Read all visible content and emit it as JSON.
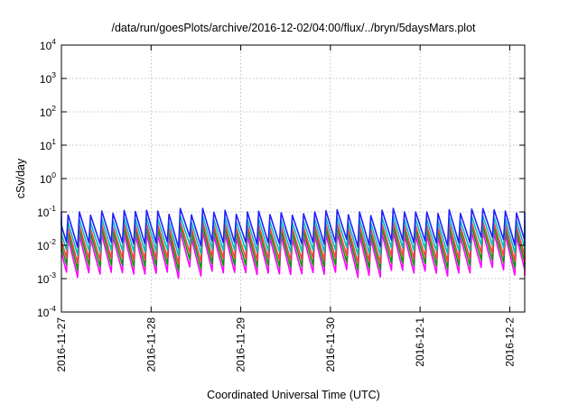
{
  "chart_data": {
    "type": "line",
    "title": "/data/run/goesPlots/archive/2016-12-02/04:00/flux/../bryn/5daysMars.plot",
    "xlabel": "Coordinated Universal Time (UTC)",
    "ylabel": "cSv/day",
    "xscale": "time",
    "yscale": "log",
    "xlim": [
      "2016-11-27T00:00",
      "2016-12-02T04:00"
    ],
    "ylim": [
      0.0001,
      10000
    ],
    "x_ticks": [
      "2016-11-27",
      "2016-11-28",
      "2016-11-29",
      "2016-11-30",
      "2016-12-1",
      "2016-12-2"
    ],
    "y_ticks": [
      {
        "base": "10",
        "exp": "-4"
      },
      {
        "base": "10",
        "exp": "-3"
      },
      {
        "base": "10",
        "exp": "-2"
      },
      {
        "base": "10",
        "exp": "-1"
      },
      {
        "base": "10",
        "exp": "0"
      },
      {
        "base": "10",
        "exp": "1"
      },
      {
        "base": "10",
        "exp": "2"
      },
      {
        "base": "10",
        "exp": "3"
      },
      {
        "base": "10",
        "exp": "4"
      }
    ],
    "grid": true,
    "pattern": {
      "period_hours": 3,
      "description": "sawtooth: sharp rise then exponential decay each period"
    },
    "series": [
      {
        "color": "#ff00ff",
        "peak": 0.02,
        "trough": 0.0015
      },
      {
        "color": "#00a000",
        "peak": 0.03,
        "trough": 0.0025
      },
      {
        "color": "#ff4040",
        "peak": 0.04,
        "trough": 0.004
      },
      {
        "color": "#00c0c0",
        "peak": 0.06,
        "trough": 0.007
      },
      {
        "color": "#2020ff",
        "peak": 0.1,
        "trough": 0.012
      }
    ]
  }
}
